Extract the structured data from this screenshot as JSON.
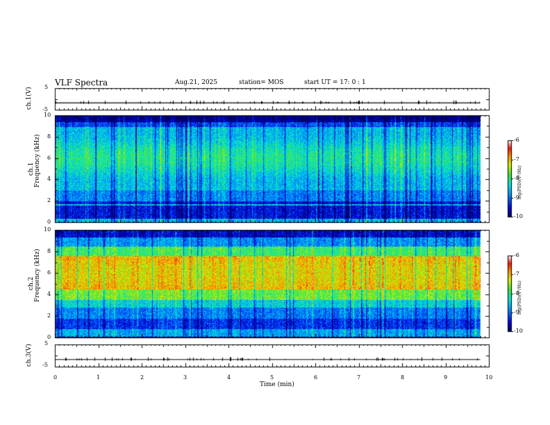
{
  "header": {
    "title": "VLF Spectra",
    "date": "Aug.21, 2025",
    "station": "station= MOS",
    "start": "start  UT  =   17: 0   : 1"
  },
  "chart_data": [
    {
      "type": "line",
      "id": "ch1-voltage",
      "ylabel": "ch.1(V)",
      "ylim": [
        -5,
        5
      ],
      "yticks": [
        "5",
        "-5"
      ],
      "xlim": [
        0,
        10
      ],
      "series_value_approx": -1.8,
      "data_end_min": 9.8
    },
    {
      "type": "heatmap",
      "id": "ch1-spectrogram",
      "ylabel": "ch.1\nFrequency (kHz)",
      "ylabel_line1": "ch.1",
      "ylabel_line2": "Frequency (kHz)",
      "ylim": [
        0,
        10
      ],
      "yticks": [
        "0",
        "2",
        "4",
        "6",
        "8",
        "10"
      ],
      "xlim": [
        0,
        10
      ],
      "data_end_min": 9.8,
      "colorbar": {
        "label": "log(PSD)(V²/Hz)",
        "range": [
          -10,
          -6
        ],
        "ticks": [
          "-6",
          "-7",
          "-8",
          "-9",
          "-10"
        ]
      },
      "profile_note_levels": "mostly -9 to -8 (green/cyan) with -7 bursts; dark blue below 2 kHz and above 9.4 kHz"
    },
    {
      "type": "heatmap",
      "id": "ch2-spectrogram",
      "ylabel_line1": "ch.2",
      "ylabel_line2": "Frequency (kHz)",
      "ylim": [
        0,
        10
      ],
      "yticks": [
        "0",
        "2",
        "4",
        "6",
        "8",
        "10"
      ],
      "xlim": [
        0,
        10
      ],
      "data_end_min": 9.8,
      "colorbar": {
        "label": "log(PSD)(V²/Hz)",
        "range": [
          -10,
          -6
        ],
        "ticks": [
          "-6",
          "-7",
          "-8",
          "-9",
          "-10"
        ]
      },
      "profile_note_levels": "peak near -7 (red) between 4.5 and 7.5 kHz; green/cyan 2-4 kHz; blue above 9 kHz"
    },
    {
      "type": "line",
      "id": "ch3-voltage",
      "ylabel": "ch.3(V)",
      "ylim": [
        -5,
        5
      ],
      "yticks": [
        "5",
        "-5"
      ],
      "xlim": [
        0,
        10
      ],
      "series_value_approx": -1.8,
      "data_end_min": 9.8,
      "xlabel": "Time  (min)",
      "xticks": [
        "0",
        "1",
        "2",
        "3",
        "4",
        "5",
        "6",
        "7",
        "8",
        "9",
        "10"
      ]
    }
  ]
}
